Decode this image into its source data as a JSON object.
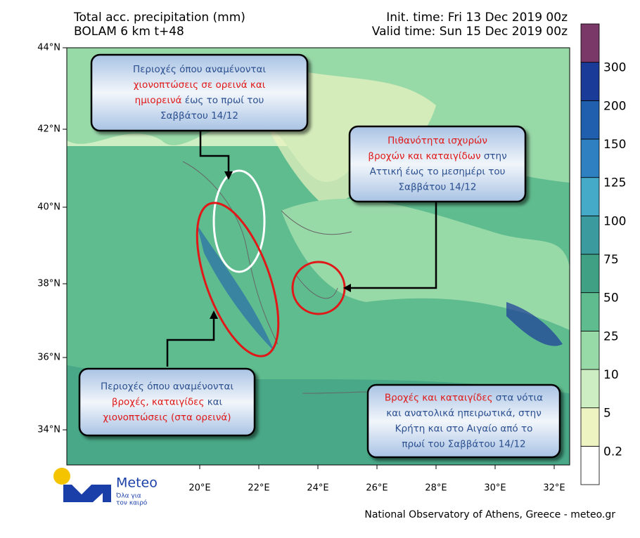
{
  "header": {
    "title": "Total acc. precipitation (mm)",
    "model": "BOLAM 6 km t+48",
    "init_time": "Init. time: Fri 13 Dec 2019 00z",
    "valid_time": "Valid time: Sun 15 Dec 2019 00z"
  },
  "map": {
    "lat_labels": [
      "44°N",
      "42°N",
      "40°N",
      "38°N",
      "36°N",
      "34°N"
    ],
    "lon_labels": [
      "20°E",
      "22°E",
      "24°E",
      "26°E",
      "28°E",
      "30°E",
      "32°E"
    ]
  },
  "callouts": [
    {
      "lines": [
        [
          {
            "text": "Περιοχές όπου αναμένονται",
            "color": "#2b4f8f"
          }
        ],
        [
          {
            "text": "χιονοπτώσεις σε ορεινά και",
            "color": "#e01818"
          }
        ],
        [
          {
            "text": "ημιορεινά",
            "color": "#e01818"
          },
          {
            "text": " έως το πρωί του",
            "color": "#2b4f8f"
          }
        ],
        [
          {
            "text": "Σαββάτου 14/12",
            "color": "#2b4f8f"
          }
        ]
      ]
    },
    {
      "lines": [
        [
          {
            "text": "Πιθανότητα ισχυρών",
            "color": "#e01818"
          }
        ],
        [
          {
            "text": "βροχών και καταιγίδων",
            "color": "#e01818"
          },
          {
            "text": " στην",
            "color": "#2b4f8f"
          }
        ],
        [
          {
            "text": "Αττική έως το μεσημέρι του",
            "color": "#2b4f8f"
          }
        ],
        [
          {
            "text": "Σαββάτου 14/12",
            "color": "#2b4f8f"
          }
        ]
      ]
    },
    {
      "lines": [
        [
          {
            "text": "Περιοχές όπου αναμένονται",
            "color": "#2b4f8f"
          }
        ],
        [
          {
            "text": "βροχές, καταιγίδες",
            "color": "#e01818"
          },
          {
            "text": " και",
            "color": "#2b4f8f"
          }
        ],
        [
          {
            "text": "χιονοπτώσεις (στα ορεινά)",
            "color": "#e01818"
          }
        ]
      ]
    },
    {
      "lines": [
        [
          {
            "text": "Βροχές και καταιγίδες",
            "color": "#e01818"
          },
          {
            "text": " στα νότια",
            "color": "#2b4f8f"
          }
        ],
        [
          {
            "text": "και ανατολικά ηπειρωτικά, στην",
            "color": "#2b4f8f"
          }
        ],
        [
          {
            "text": "Κρήτη και στο Αιγαίο από το",
            "color": "#2b4f8f"
          }
        ],
        [
          {
            "text": "πρωί του Σαββάτου 14/12",
            "color": "#2b4f8f"
          }
        ]
      ]
    }
  ],
  "colorbar": {
    "levels": [
      0.2,
      5,
      10,
      25,
      50,
      75,
      100,
      125,
      150,
      200,
      300
    ],
    "colors": [
      "#ffffff",
      "#eef3c2",
      "#cdeec2",
      "#98d9a8",
      "#5fbc8f",
      "#3fa083",
      "#3a9a9e",
      "#45a9c8",
      "#2f80c0",
      "#1f5fae",
      "#1b3b98",
      "#7a3868"
    ]
  },
  "logo": {
    "name": "Meteo",
    "tagline_1": "Όλα για",
    "tagline_2": "τον καιρό"
  },
  "footer": "National Observatory of Athens, Greece - meteo.gr"
}
